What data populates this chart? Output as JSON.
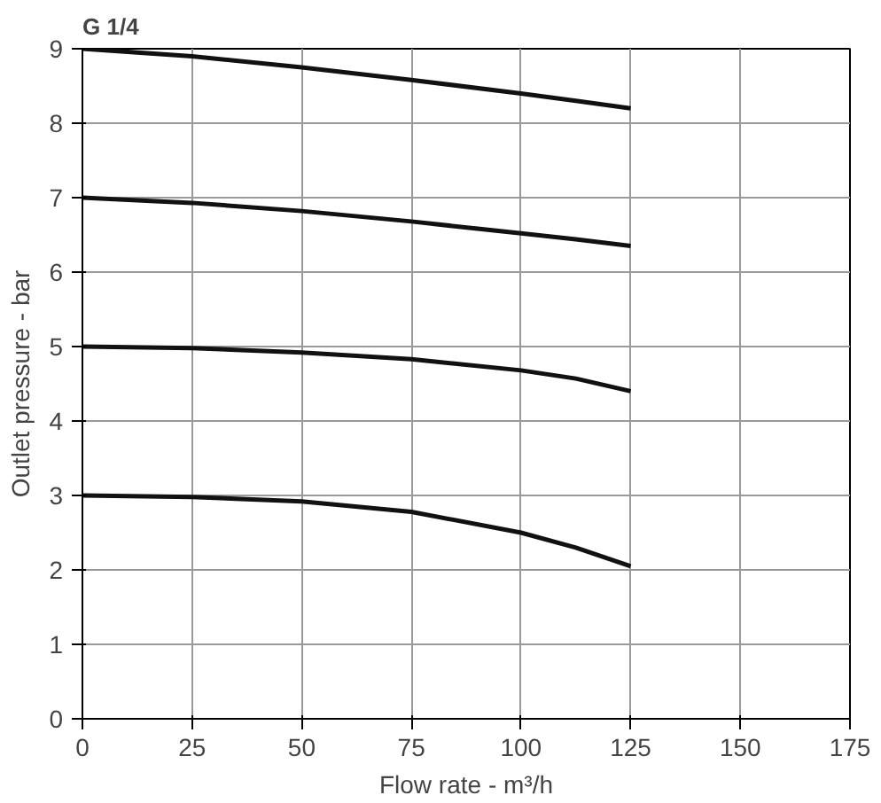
{
  "chart_data": {
    "type": "line",
    "title": "G 1/4",
    "xlabel": "Flow rate - m³/h",
    "ylabel": "Outlet pressure - bar",
    "x": [
      0,
      25,
      50,
      75,
      100,
      112.5,
      125
    ],
    "series": [
      {
        "color": "#111111",
        "values": [
          9.0,
          8.9,
          8.75,
          8.58,
          8.4,
          8.3,
          8.2
        ]
      },
      {
        "color": "#111111",
        "values": [
          7.0,
          6.93,
          6.82,
          6.68,
          6.52,
          6.44,
          6.35
        ]
      },
      {
        "color": "#111111",
        "values": [
          5.0,
          4.98,
          4.92,
          4.83,
          4.68,
          4.57,
          4.4
        ]
      },
      {
        "color": "#111111",
        "values": [
          3.0,
          2.98,
          2.92,
          2.78,
          2.5,
          2.3,
          2.05
        ]
      }
    ],
    "xlim": [
      0,
      175
    ],
    "ylim": [
      0,
      9
    ],
    "xticks": [
      0,
      25,
      50,
      75,
      100,
      125,
      150,
      175
    ],
    "yticks": [
      0,
      1,
      2,
      3,
      4,
      5,
      6,
      7,
      8,
      9
    ],
    "grid": true,
    "line_style": "solid"
  }
}
